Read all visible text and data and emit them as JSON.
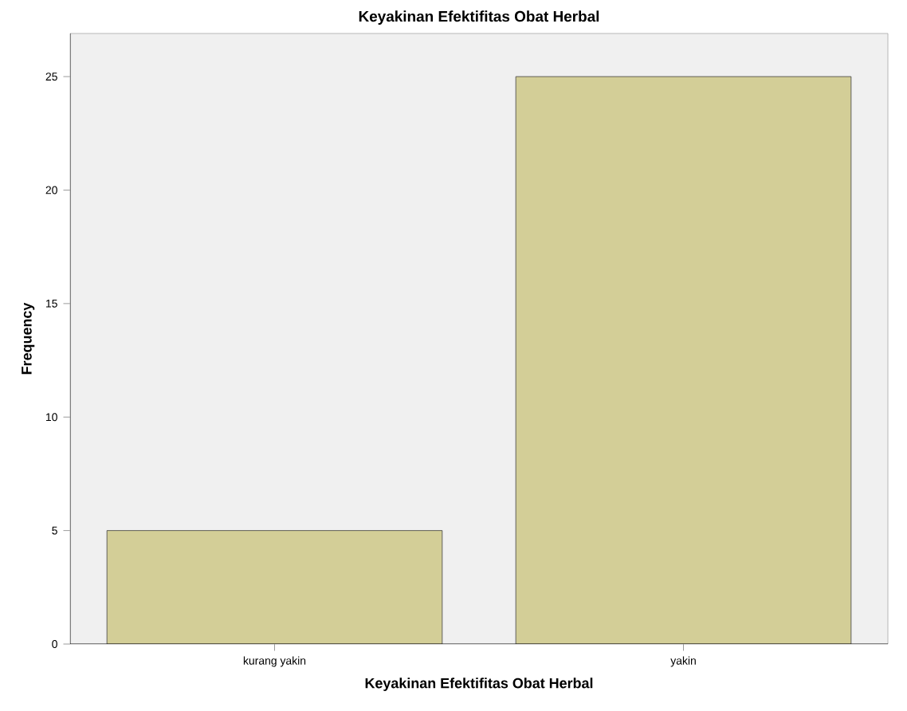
{
  "chart_data": {
    "type": "bar",
    "title": "Keyakinan Efektifitas Obat Herbal",
    "xlabel": "Keyakinan Efektifitas Obat Herbal",
    "ylabel": "Frequency",
    "categories": [
      "kurang yakin",
      "yakin"
    ],
    "values": [
      5,
      25
    ],
    "color": "#d3ce97",
    "ylim": [
      0,
      26.9
    ],
    "yticks": [
      0,
      5,
      10,
      15,
      20,
      25
    ],
    "grid": false
  }
}
